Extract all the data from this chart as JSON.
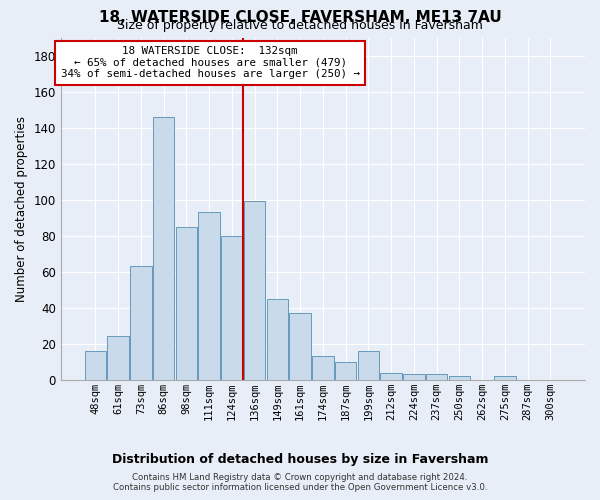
{
  "title": "18, WATERSIDE CLOSE, FAVERSHAM, ME13 7AU",
  "subtitle": "Size of property relative to detached houses in Faversham",
  "xlabel": "Distribution of detached houses by size in Faversham",
  "ylabel": "Number of detached properties",
  "bar_labels": [
    "48sqm",
    "61sqm",
    "73sqm",
    "86sqm",
    "98sqm",
    "111sqm",
    "124sqm",
    "136sqm",
    "149sqm",
    "161sqm",
    "174sqm",
    "187sqm",
    "199sqm",
    "212sqm",
    "224sqm",
    "237sqm",
    "250sqm",
    "262sqm",
    "275sqm",
    "287sqm",
    "300sqm"
  ],
  "bar_values": [
    16,
    24,
    63,
    146,
    85,
    93,
    80,
    99,
    45,
    37,
    13,
    10,
    16,
    4,
    3,
    3,
    2,
    0,
    2,
    0,
    0
  ],
  "bar_color": "#c9daea",
  "bar_edge_color": "#6699bb",
  "annotation_line0": "18 WATERSIDE CLOSE:  132sqm",
  "annotation_line1": "← 65% of detached houses are smaller (479)",
  "annotation_line2": "34% of semi-detached houses are larger (250) →",
  "vline_color": "#cc0000",
  "vline_position": 7,
  "ylim": [
    0,
    190
  ],
  "yticks": [
    0,
    20,
    40,
    60,
    80,
    100,
    120,
    140,
    160,
    180
  ],
  "annotation_box_edge": "#cc0000",
  "footer": "Contains HM Land Registry data © Crown copyright and database right 2024.\nContains public sector information licensed under the Open Government Licence v3.0.",
  "bg_color": "#e8eef8",
  "plot_bg_color": "#e8eef8",
  "grid_color": "#ffffff"
}
